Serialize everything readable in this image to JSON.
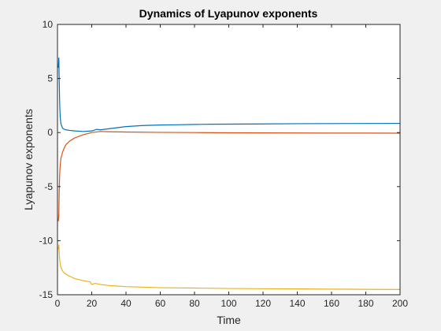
{
  "chart_data": {
    "type": "line",
    "title": "Dynamics of Lyapunov exponents",
    "xlabel": "Time",
    "ylabel": "Lyapunov exponents",
    "xlim": [
      0,
      200
    ],
    "ylim": [
      -15,
      10
    ],
    "xticks": [
      "0",
      "20",
      "40",
      "60",
      "80",
      "100",
      "120",
      "140",
      "160",
      "180",
      "200"
    ],
    "yticks": [
      "-15",
      "-10",
      "-5",
      "0",
      "5",
      "10"
    ],
    "grid": false,
    "legend": "none",
    "series": [
      {
        "color": "#0072BD",
        "x": [
          0.5,
          0.8,
          1.0,
          1.3,
          1.6,
          2,
          3,
          4,
          5,
          7,
          10,
          15,
          20,
          23,
          25,
          30,
          35,
          40,
          50,
          60,
          70,
          80,
          90,
          100,
          120,
          140,
          160,
          180,
          200
        ],
        "y": [
          6.0,
          6.9,
          5.0,
          2.5,
          1.4,
          0.8,
          0.4,
          0.3,
          0.25,
          0.2,
          0.15,
          0.1,
          0.15,
          0.3,
          0.25,
          0.35,
          0.45,
          0.55,
          0.65,
          0.7,
          0.72,
          0.75,
          0.77,
          0.78,
          0.8,
          0.82,
          0.83,
          0.84,
          0.85
        ]
      },
      {
        "color": "#D95319",
        "x": [
          0.5,
          0.8,
          1.0,
          1.3,
          1.6,
          2,
          3,
          4,
          5,
          7,
          10,
          15,
          20,
          25,
          30,
          40,
          60,
          80,
          100,
          120,
          140,
          160,
          180,
          200
        ],
        "y": [
          -8.2,
          -7.5,
          -5.5,
          -3.8,
          -3.0,
          -2.4,
          -1.8,
          -1.4,
          -1.1,
          -0.8,
          -0.5,
          -0.2,
          0.0,
          0.1,
          0.08,
          0.05,
          0.02,
          0.0,
          -0.02,
          -0.03,
          -0.04,
          -0.05,
          -0.05,
          -0.06
        ]
      },
      {
        "color": "#EDB120",
        "x": [
          0.5,
          0.8,
          1.0,
          1.3,
          1.6,
          2,
          3,
          4,
          6,
          8,
          10,
          15,
          19,
          20,
          22,
          25,
          30,
          40,
          60,
          80,
          100,
          120,
          140,
          160,
          180,
          200
        ],
        "y": [
          -10.8,
          -10.4,
          -11.0,
          -11.8,
          -12.2,
          -12.5,
          -12.8,
          -13.0,
          -13.2,
          -13.35,
          -13.5,
          -13.7,
          -13.8,
          -14.05,
          -13.95,
          -14.05,
          -14.15,
          -14.25,
          -14.35,
          -14.38,
          -14.42,
          -14.44,
          -14.46,
          -14.48,
          -14.5,
          -14.52
        ]
      }
    ]
  }
}
